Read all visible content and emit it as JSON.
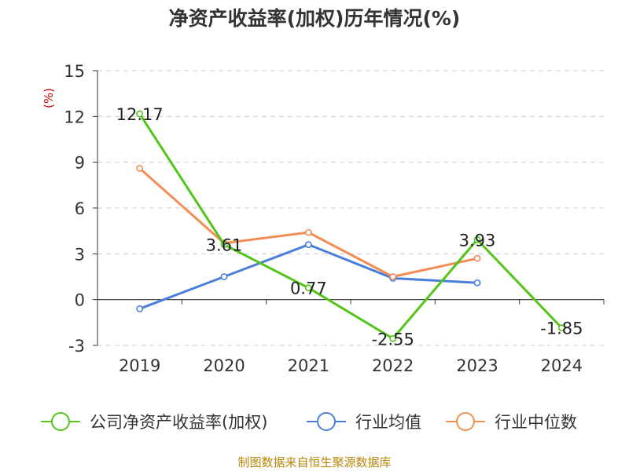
{
  "chart_data": {
    "type": "line",
    "title": "净资产收益率(加权)历年情况(%)",
    "ylabel": "(%)",
    "xlabel": "",
    "categories": [
      "2019",
      "2020",
      "2021",
      "2022",
      "2023",
      "2024"
    ],
    "ylim": [
      -3,
      15
    ],
    "yticks": [
      -3,
      0,
      3,
      6,
      9,
      12,
      15
    ],
    "grid": true,
    "legend_position": "bottom",
    "series": [
      {
        "name": "公司净资产收益率(加权)",
        "color": "#52c41a",
        "values": [
          12.17,
          3.61,
          0.77,
          -2.55,
          3.93,
          -1.85
        ],
        "labels": [
          "12.17",
          "3.61",
          "0.77",
          "-2.55",
          "3.93",
          "-1.85"
        ],
        "show_labels": true
      },
      {
        "name": "行业均值",
        "color": "#4a7fd9",
        "values": [
          -0.6,
          1.5,
          3.6,
          1.4,
          1.1,
          null
        ],
        "show_labels": false
      },
      {
        "name": "行业中位数",
        "color": "#f48c55",
        "values": [
          8.6,
          3.7,
          4.4,
          1.5,
          2.7,
          null
        ],
        "show_labels": false
      }
    ]
  },
  "footer": "制图数据来自恒生聚源数据库"
}
